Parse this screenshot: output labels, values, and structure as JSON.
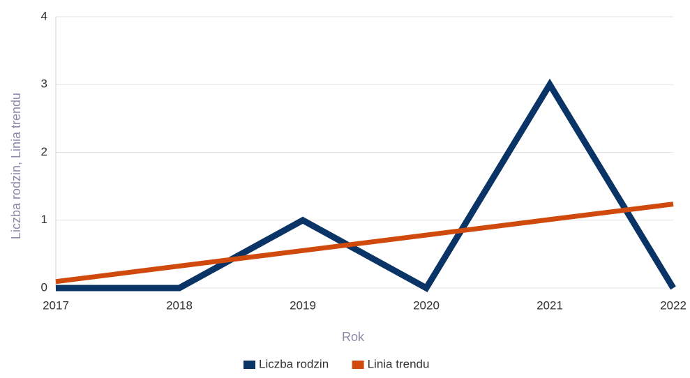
{
  "chart_data": {
    "type": "line",
    "x": [
      2017,
      2018,
      2019,
      2020,
      2021,
      2022
    ],
    "series": [
      {
        "name": "Liczba rodzin",
        "color": "#0b3466",
        "values": [
          0,
          0,
          1,
          0,
          3,
          0
        ]
      },
      {
        "name": "Linia trendu",
        "color": "#d04a0e",
        "values": [
          0.095,
          0.324,
          0.552,
          0.781,
          1.01,
          1.238
        ]
      }
    ],
    "xlabel": "Rok",
    "ylabel": "Liczba rodzin, Linia trendu",
    "xlim": [
      2017,
      2022
    ],
    "xticks": [
      2017,
      2018,
      2019,
      2020,
      2021,
      2022
    ],
    "ylim": [
      0,
      4
    ],
    "yticks": [
      0,
      1,
      2,
      3,
      4
    ],
    "grid": true,
    "legend": "bottom"
  }
}
